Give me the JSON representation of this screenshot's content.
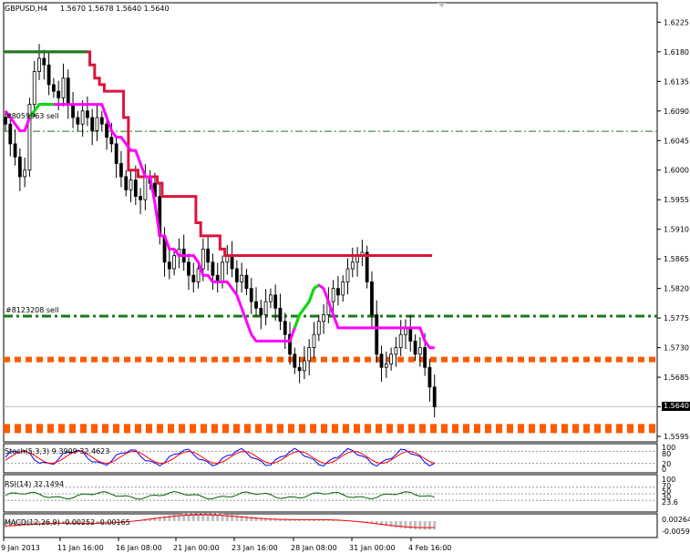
{
  "header": {
    "symbol": "GBPUSD,H4",
    "ohlc": "1.5670 1.5678 1.5640 1.5640"
  },
  "orders": [
    {
      "label": "#8059963 sell",
      "price": 1.6059,
      "color": "#1a7a1a"
    },
    {
      "label": "#8123208 sell",
      "price": 1.5778,
      "color": "#1a7a1a"
    }
  ],
  "levels": [
    {
      "price": 1.5712,
      "color": "#ff5a00"
    },
    {
      "price": 1.5607,
      "color": "#ff5a00"
    }
  ],
  "current_price": "1.5640",
  "indicators": {
    "stoch": {
      "label": "Stoch(5,3,3) 9.3909 32.4623",
      "levels": [
        "100",
        "80",
        "20",
        "0"
      ]
    },
    "rsi": {
      "label": "RSI(14) 32.1494",
      "levels": [
        "100",
        "70",
        "50",
        "30",
        "23.6"
      ]
    },
    "macd": {
      "label": "MACD(12,26,9) -0.00252 -0.00165",
      "levels": [
        "0.00264",
        "-0.0059"
      ]
    }
  },
  "colors": {
    "red_trail": "#dc143c",
    "green_trail": "#00e000",
    "magenta_trail": "#ff00ff",
    "stoch_main": "#0000ff",
    "stoch_signal": "#ff0000",
    "rsi_line": "#006400",
    "macd_hist": "#c0c0c0",
    "macd_signal": "#ff0000"
  },
  "chart_data": {
    "type": "candlestick",
    "title": "GBPUSD,H4",
    "ylim": [
      1.5595,
      1.6238
    ],
    "yticks": [
      "1.6225",
      "1.6180",
      "1.6135",
      "1.6090",
      "1.6045",
      "1.6000",
      "1.5955",
      "1.5910",
      "1.5865",
      "1.5820",
      "1.5775",
      "1.5730",
      "1.5685",
      "1.5640",
      "1.5595"
    ],
    "xticks": [
      "9 Jan 2013",
      "11 Jan 16:00",
      "16 Jan 08:00",
      "21 Jan 00:00",
      "23 Jan 16:00",
      "28 Jan 08:00",
      "31 Jan 00:00",
      "4 Feb 16:00"
    ],
    "closes": [
      1.607,
      1.604,
      1.602,
      1.599,
      1.6,
      1.61,
      1.615,
      1.617,
      1.616,
      1.613,
      1.612,
      1.611,
      1.614,
      1.61,
      1.608,
      1.607,
      1.609,
      1.608,
      1.606,
      1.608,
      1.607,
      1.605,
      1.604,
      1.601,
      1.599,
      1.597,
      1.5985,
      1.596,
      1.5955,
      1.599,
      1.598,
      1.596,
      1.59,
      1.586,
      1.585,
      1.587,
      1.588,
      1.586,
      1.584,
      1.583,
      1.585,
      1.588,
      1.586,
      1.584,
      1.583,
      1.586,
      1.587,
      1.585,
      1.583,
      1.584,
      1.582,
      1.58,
      1.579,
      1.578,
      1.58,
      1.581,
      1.579,
      1.577,
      1.575,
      1.572,
      1.57,
      1.5695,
      1.571,
      1.573,
      1.575,
      1.577,
      1.578,
      1.58,
      1.582,
      1.581,
      1.583,
      1.585,
      1.586,
      1.587,
      1.5875,
      1.583,
      1.578,
      1.572,
      1.57,
      1.5705,
      1.572,
      1.573,
      1.575,
      1.576,
      1.574,
      1.572,
      1.573,
      1.57,
      1.567,
      1.564
    ],
    "series": [
      {
        "name": "",
        "color": "#dc143c",
        "values": [
          1.618,
          1.618,
          1.618,
          1.618,
          1.618,
          1.618,
          1.618,
          1.618,
          1.618,
          1.618,
          1.618,
          1.618,
          1.618,
          1.618,
          1.618,
          1.618,
          1.618,
          1.618,
          1.616,
          1.614,
          1.613,
          1.612,
          1.612,
          1.612,
          1.612,
          1.608,
          1.6,
          1.6,
          1.599,
          1.599,
          1.599,
          1.599,
          1.598,
          1.596,
          1.596,
          1.596,
          1.596,
          1.596,
          1.596,
          1.596,
          1.592,
          1.59,
          1.59,
          1.59,
          1.59,
          1.588,
          1.587,
          1.587,
          1.587,
          1.587,
          1.587,
          1.587,
          1.587,
          1.587,
          1.587,
          1.587,
          1.587,
          1.587,
          1.587,
          1.587,
          1.587,
          1.587,
          1.587,
          1.587,
          1.587,
          1.587,
          1.587,
          1.587,
          1.587,
          1.587,
          1.587,
          1.587,
          1.587,
          1.587,
          1.587,
          1.587,
          1.587,
          1.587,
          1.587,
          1.587,
          1.587,
          1.587,
          1.587,
          1.587,
          1.587,
          1.587,
          1.587,
          1.587,
          1.587
        ]
      },
      {
        "name": "",
        "color": "#ff00ff",
        "values": [
          1.609,
          1.608,
          1.607,
          1.606,
          1.606,
          1.608,
          1.609,
          1.61,
          1.61,
          1.61,
          1.61,
          1.61,
          1.61,
          1.61,
          1.61,
          1.61,
          1.61,
          1.61,
          1.61,
          1.61,
          1.61,
          1.608,
          1.606,
          1.605,
          1.605,
          1.604,
          1.603,
          1.603,
          1.601,
          1.599,
          1.599,
          1.595,
          1.59,
          1.59,
          1.588,
          1.588,
          1.587,
          1.587,
          1.587,
          1.587,
          1.586,
          1.584,
          1.584,
          1.583,
          1.583,
          1.583,
          1.583,
          1.582,
          1.581,
          1.579,
          1.577,
          1.575,
          1.574,
          1.574,
          1.574,
          1.574,
          1.574,
          1.574,
          1.574,
          1.574,
          1.576,
          1.578,
          1.579,
          1.58,
          1.582,
          1.5825,
          1.582,
          1.58,
          1.578,
          1.576,
          1.576,
          1.576,
          1.576,
          1.576,
          1.576,
          1.576,
          1.576,
          1.576,
          1.576,
          1.576,
          1.576,
          1.576,
          1.576,
          1.576,
          1.576,
          1.576,
          1.576,
          1.574,
          1.573,
          1.573
        ]
      }
    ]
  }
}
